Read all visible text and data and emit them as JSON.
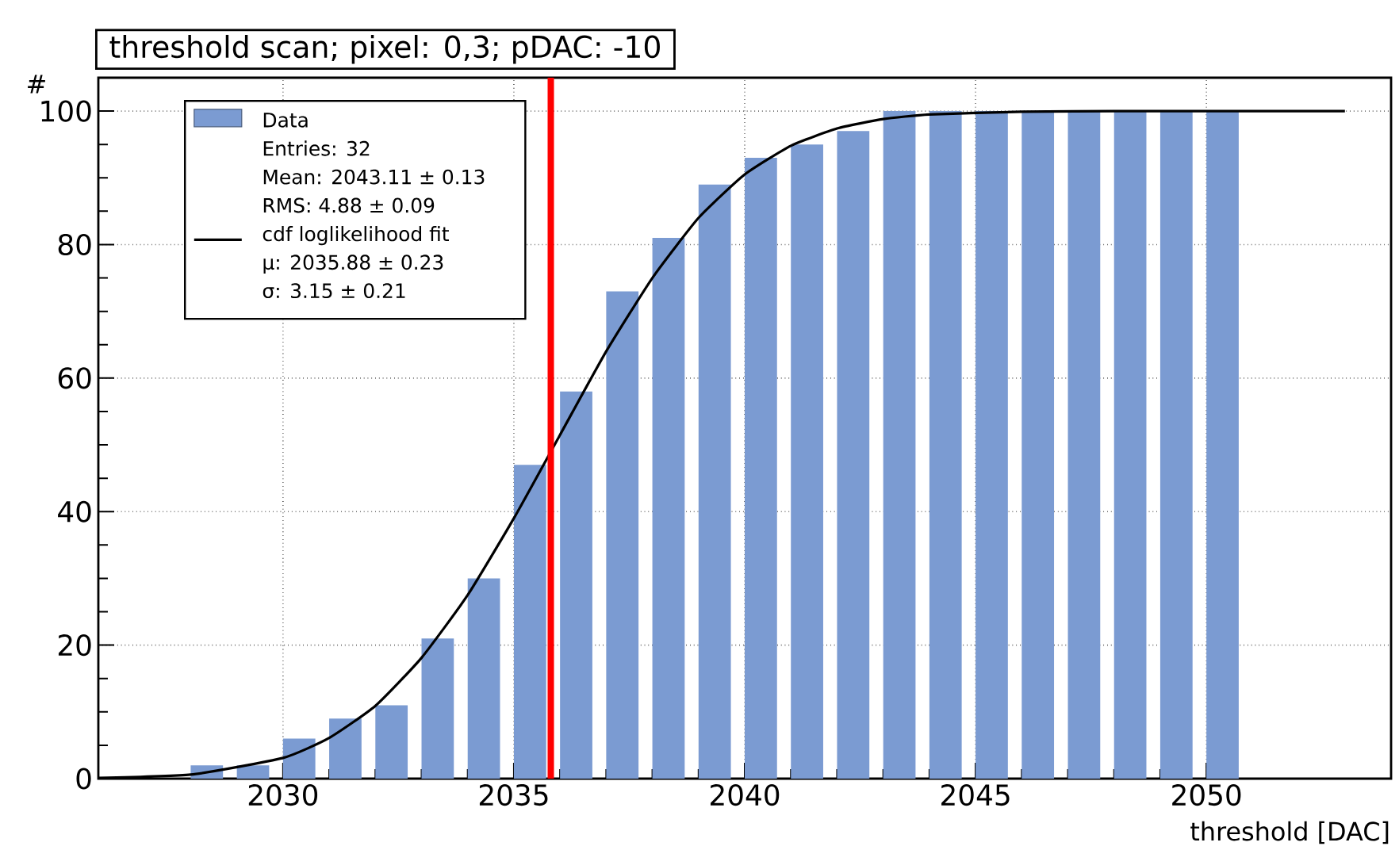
{
  "chart_data": {
    "type": "bar",
    "title": "threshold scan; pixel: 0,3; pDAC: -10",
    "xlabel": "threshold [DAC]",
    "ylabel": "#",
    "series": [
      {
        "name": "Data",
        "color": "#7b9bd2",
        "x": [
          2028.35,
          2029.35,
          2030.35,
          2031.35,
          2032.35,
          2033.35,
          2034.35,
          2035.35,
          2036.35,
          2037.35,
          2038.35,
          2039.35,
          2040.35,
          2041.35,
          2042.35,
          2043.35,
          2044.35,
          2045.35,
          2046.35,
          2047.35,
          2048.35,
          2049.35,
          2050.35
        ],
        "values": [
          2,
          2,
          6,
          9,
          11,
          21,
          30,
          47,
          58,
          73,
          81,
          89,
          93,
          95,
          97,
          100,
          100,
          100,
          100,
          100,
          100,
          100,
          100
        ]
      },
      {
        "name": "cdf loglikelihood fit",
        "type": "line",
        "color": "#000000",
        "x": [
          2026,
          2028,
          2030,
          2031,
          2032,
          2033,
          2034,
          2035,
          2036,
          2037,
          2038,
          2039,
          2040,
          2041,
          2042,
          2043,
          2044,
          2046,
          2048,
          2053
        ],
        "values": [
          0.1,
          0.6,
          3.1,
          6.1,
          10.9,
          18.1,
          27.5,
          39,
          51.5,
          64,
          75,
          84,
          90.5,
          94.8,
          97.4,
          98.8,
          99.5,
          99.9,
          100,
          100
        ]
      }
    ],
    "annotations": [
      "Entries: 32",
      "Mean: 2043.11 ± 0.13",
      "RMS: 4.88 ± 0.09",
      "μ: 2035.88 ± 0.23",
      "σ: 3.15 ± 0.21"
    ],
    "ref_lines": [
      {
        "axis": "x",
        "value": 2035.8,
        "color": "#ff0000"
      }
    ],
    "xlim": [
      2026,
      2054
    ],
    "ylim": [
      0,
      105
    ],
    "xticks": [
      2030,
      2035,
      2040,
      2045,
      2050
    ],
    "yticks": [
      0,
      20,
      40,
      60,
      80,
      100
    ],
    "grid": true,
    "legend": "top left",
    "marker": "none",
    "line_style": "solid"
  }
}
